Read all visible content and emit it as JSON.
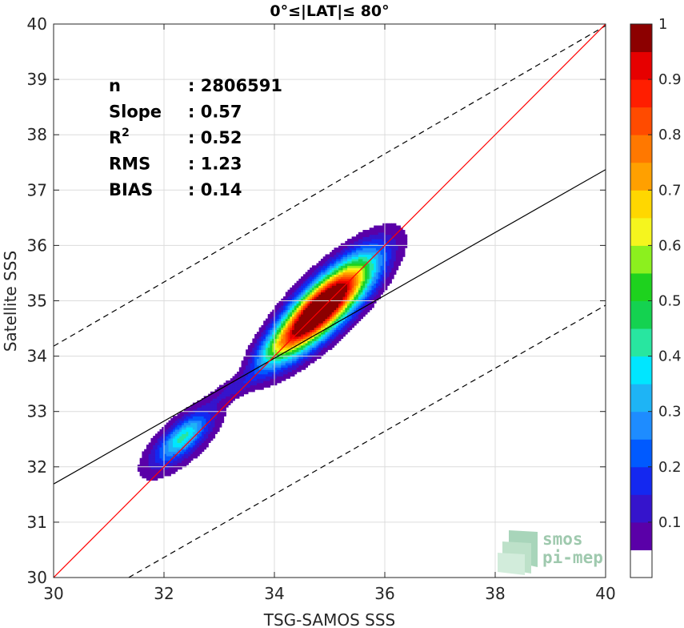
{
  "chart_data": {
    "type": "heatmap",
    "title": "0°≤|LAT|≤ 80°",
    "xlabel": "TSG-SAMOS SSS",
    "ylabel": "Satellite SSS",
    "xlim": [
      30,
      40
    ],
    "ylim": [
      30,
      40
    ],
    "xticks": [
      "30",
      "32",
      "34",
      "36",
      "38",
      "40"
    ],
    "yticks": [
      "30",
      "31",
      "32",
      "33",
      "34",
      "35",
      "36",
      "37",
      "38",
      "39",
      "40"
    ],
    "grid": true,
    "stats": [
      {
        "label": "n",
        "value": ": 2806591"
      },
      {
        "label": "Slope",
        "value": ": 0.57"
      },
      {
        "label": "R",
        "sup": "2",
        "value": ": 0.52"
      },
      {
        "label": "RMS",
        "value": ": 1.23"
      },
      {
        "label": "BIAS",
        "value": ": 0.14"
      }
    ],
    "lines": {
      "one_to_one": {
        "color": "#ff0000",
        "x": [
          30,
          40
        ],
        "y": [
          30,
          40
        ]
      },
      "regression": {
        "color": "#000000",
        "style": "solid",
        "x": [
          30,
          40
        ],
        "y": [
          31.69,
          37.37
        ]
      },
      "upper_bound": {
        "color": "#000000",
        "style": "dashed",
        "x": [
          30,
          40
        ],
        "y": [
          34.18,
          39.97
        ]
      },
      "lower_bound": {
        "color": "#000000",
        "style": "dashed",
        "x": [
          31.36,
          40
        ],
        "y": [
          30,
          34.92
        ]
      }
    },
    "density_peaks": [
      {
        "x": 35.02,
        "y": 35.02,
        "sx": 0.56,
        "sy": 0.56,
        "rho": 0.78,
        "amp": 1.0
      },
      {
        "x": 34.5,
        "y": 34.55,
        "sx": 0.45,
        "sy": 0.48,
        "rho": 0.75,
        "amp": 0.44
      },
      {
        "x": 34.0,
        "y": 34.15,
        "sx": 0.28,
        "sy": 0.28,
        "rho": 0.7,
        "amp": 0.17
      },
      {
        "x": 33.3,
        "y": 33.45,
        "sx": 0.35,
        "sy": 0.22,
        "rho": 0.82,
        "amp": 0.1
      },
      {
        "x": 32.35,
        "y": 32.55,
        "sx": 0.3,
        "sy": 0.28,
        "rho": 0.72,
        "amp": 0.28
      },
      {
        "x": 32.3,
        "y": 32.45,
        "sx": 0.5,
        "sy": 0.45,
        "rho": 0.7,
        "amp": 0.14
      }
    ],
    "colorbar": {
      "ticks": [
        "0.1",
        "0.2",
        "0.3",
        "0.4",
        "0.5",
        "0.6",
        "0.7",
        "0.8",
        "0.9",
        "1"
      ],
      "range": [
        0,
        1
      ],
      "bands": [
        {
          "from": 0.0,
          "to": 0.05,
          "color": "#ffffff"
        },
        {
          "from": 0.05,
          "to": 0.1,
          "color": "#5a00a8"
        },
        {
          "from": 0.1,
          "to": 0.15,
          "color": "#3514cc"
        },
        {
          "from": 0.15,
          "to": 0.2,
          "color": "#1428f0"
        },
        {
          "from": 0.2,
          "to": 0.25,
          "color": "#005aff"
        },
        {
          "from": 0.25,
          "to": 0.3,
          "color": "#1e8cff"
        },
        {
          "from": 0.3,
          "to": 0.35,
          "color": "#1eb4f5"
        },
        {
          "from": 0.35,
          "to": 0.4,
          "color": "#00e6ff"
        },
        {
          "from": 0.4,
          "to": 0.45,
          "color": "#28e6a0"
        },
        {
          "from": 0.45,
          "to": 0.5,
          "color": "#14d250"
        },
        {
          "from": 0.5,
          "to": 0.55,
          "color": "#1ed21e"
        },
        {
          "from": 0.55,
          "to": 0.6,
          "color": "#8cf01e"
        },
        {
          "from": 0.6,
          "to": 0.65,
          "color": "#f5f51e"
        },
        {
          "from": 0.65,
          "to": 0.7,
          "color": "#ffd700"
        },
        {
          "from": 0.7,
          "to": 0.75,
          "color": "#ffa000"
        },
        {
          "from": 0.75,
          "to": 0.8,
          "color": "#ff7800"
        },
        {
          "from": 0.8,
          "to": 0.85,
          "color": "#ff4b00"
        },
        {
          "from": 0.85,
          "to": 0.9,
          "color": "#ff1e00"
        },
        {
          "from": 0.9,
          "to": 0.95,
          "color": "#e60000"
        },
        {
          "from": 0.95,
          "to": 1.0,
          "color": "#8c0000"
        }
      ]
    }
  },
  "logo": {
    "line1": "smos",
    "line2": "pi-mep"
  }
}
